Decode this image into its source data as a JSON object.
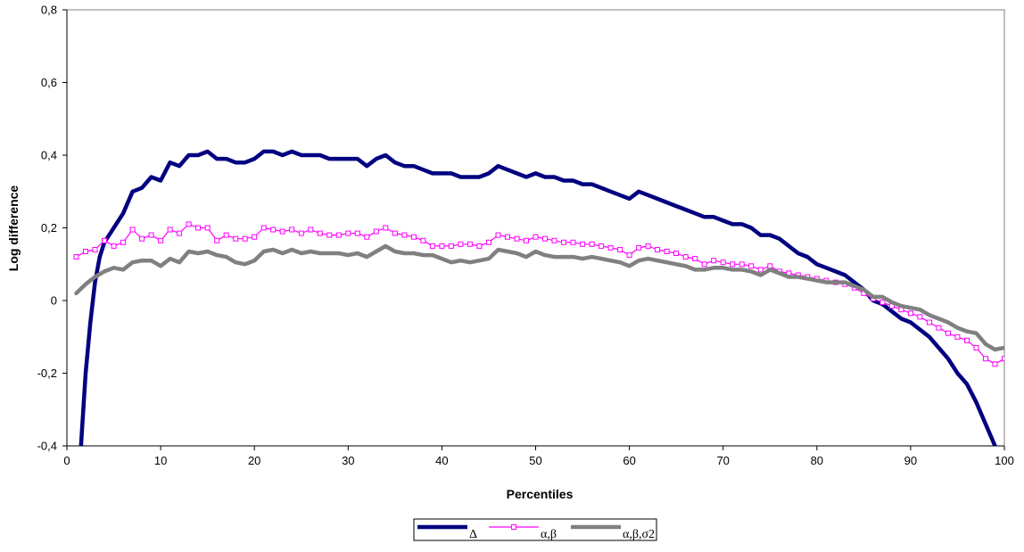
{
  "chart_data": {
    "type": "line",
    "title": "",
    "xlabel": "Percentiles",
    "ylabel": "Log difference",
    "xlim": [
      0,
      100
    ],
    "ylim": [
      -0.4,
      0.8
    ],
    "x_ticks": [
      0,
      10,
      20,
      30,
      40,
      50,
      60,
      70,
      80,
      90,
      100
    ],
    "x_tick_labels": [
      "0",
      "10",
      "20",
      "30",
      "40",
      "50",
      "60",
      "70",
      "80",
      "90",
      "100"
    ],
    "y_ticks": [
      -0.4,
      -0.2,
      0,
      0.2,
      0.4,
      0.6,
      0.8
    ],
    "y_tick_labels": [
      "-0,4",
      "-0,2",
      "0",
      "0,2",
      "0,4",
      "0,6",
      "0,8"
    ],
    "grid": false,
    "legend_position": "bottom-center",
    "series": [
      {
        "name": "Δ",
        "color": "#000080",
        "style": "thick-line",
        "points": [
          [
            1.5,
            -0.4
          ],
          [
            2,
            -0.2
          ],
          [
            2.5,
            -0.06
          ],
          [
            3,
            0.05
          ],
          [
            3.5,
            0.12
          ],
          [
            4,
            0.16
          ],
          [
            5,
            0.2
          ],
          [
            6,
            0.24
          ],
          [
            7,
            0.3
          ],
          [
            8,
            0.31
          ],
          [
            9,
            0.34
          ],
          [
            10,
            0.33
          ],
          [
            11,
            0.38
          ],
          [
            12,
            0.37
          ],
          [
            13,
            0.4
          ],
          [
            14,
            0.4
          ],
          [
            15,
            0.41
          ],
          [
            16,
            0.39
          ],
          [
            17,
            0.39
          ],
          [
            18,
            0.38
          ],
          [
            19,
            0.38
          ],
          [
            20,
            0.39
          ],
          [
            21,
            0.41
          ],
          [
            22,
            0.41
          ],
          [
            23,
            0.4
          ],
          [
            24,
            0.41
          ],
          [
            25,
            0.4
          ],
          [
            26,
            0.4
          ],
          [
            27,
            0.4
          ],
          [
            28,
            0.39
          ],
          [
            29,
            0.39
          ],
          [
            30,
            0.39
          ],
          [
            31,
            0.39
          ],
          [
            32,
            0.37
          ],
          [
            33,
            0.39
          ],
          [
            34,
            0.4
          ],
          [
            35,
            0.38
          ],
          [
            36,
            0.37
          ],
          [
            37,
            0.37
          ],
          [
            38,
            0.36
          ],
          [
            39,
            0.35
          ],
          [
            40,
            0.35
          ],
          [
            41,
            0.35
          ],
          [
            42,
            0.34
          ],
          [
            43,
            0.34
          ],
          [
            44,
            0.34
          ],
          [
            45,
            0.35
          ],
          [
            46,
            0.37
          ],
          [
            47,
            0.36
          ],
          [
            48,
            0.35
          ],
          [
            49,
            0.34
          ],
          [
            50,
            0.35
          ],
          [
            51,
            0.34
          ],
          [
            52,
            0.34
          ],
          [
            53,
            0.33
          ],
          [
            54,
            0.33
          ],
          [
            55,
            0.32
          ],
          [
            56,
            0.32
          ],
          [
            57,
            0.31
          ],
          [
            58,
            0.3
          ],
          [
            59,
            0.29
          ],
          [
            60,
            0.28
          ],
          [
            61,
            0.3
          ],
          [
            62,
            0.29
          ],
          [
            63,
            0.28
          ],
          [
            64,
            0.27
          ],
          [
            65,
            0.26
          ],
          [
            66,
            0.25
          ],
          [
            67,
            0.24
          ],
          [
            68,
            0.23
          ],
          [
            69,
            0.23
          ],
          [
            70,
            0.22
          ],
          [
            71,
            0.21
          ],
          [
            72,
            0.21
          ],
          [
            73,
            0.2
          ],
          [
            74,
            0.18
          ],
          [
            75,
            0.18
          ],
          [
            76,
            0.17
          ],
          [
            77,
            0.15
          ],
          [
            78,
            0.13
          ],
          [
            79,
            0.12
          ],
          [
            80,
            0.1
          ],
          [
            81,
            0.09
          ],
          [
            82,
            0.08
          ],
          [
            83,
            0.07
          ],
          [
            84,
            0.05
          ],
          [
            85,
            0.03
          ],
          [
            86,
            0
          ],
          [
            87,
            -0.01
          ],
          [
            88,
            -0.03
          ],
          [
            89,
            -0.05
          ],
          [
            90,
            -0.06
          ],
          [
            91,
            -0.08
          ],
          [
            92,
            -0.1
          ],
          [
            93,
            -0.13
          ],
          [
            94,
            -0.16
          ],
          [
            95,
            -0.2
          ],
          [
            96,
            -0.23
          ],
          [
            97,
            -0.28
          ],
          [
            98,
            -0.34
          ],
          [
            99,
            -0.4
          ]
        ]
      },
      {
        "name": "α,β",
        "color": "#ff00ff",
        "style": "thin-line-square-markers",
        "points": [
          [
            1,
            0.12
          ],
          [
            2,
            0.135
          ],
          [
            3,
            0.14
          ],
          [
            4,
            0.165
          ],
          [
            5,
            0.15
          ],
          [
            6,
            0.16
          ],
          [
            7,
            0.195
          ],
          [
            8,
            0.17
          ],
          [
            9,
            0.18
          ],
          [
            10,
            0.165
          ],
          [
            11,
            0.195
          ],
          [
            12,
            0.185
          ],
          [
            13,
            0.21
          ],
          [
            14,
            0.2
          ],
          [
            15,
            0.2
          ],
          [
            16,
            0.165
          ],
          [
            17,
            0.18
          ],
          [
            18,
            0.17
          ],
          [
            19,
            0.17
          ],
          [
            20,
            0.175
          ],
          [
            21,
            0.2
          ],
          [
            22,
            0.195
          ],
          [
            23,
            0.19
          ],
          [
            24,
            0.195
          ],
          [
            25,
            0.185
          ],
          [
            26,
            0.195
          ],
          [
            27,
            0.185
          ],
          [
            28,
            0.18
          ],
          [
            29,
            0.18
          ],
          [
            30,
            0.185
          ],
          [
            31,
            0.185
          ],
          [
            32,
            0.175
          ],
          [
            33,
            0.19
          ],
          [
            34,
            0.2
          ],
          [
            35,
            0.185
          ],
          [
            36,
            0.18
          ],
          [
            37,
            0.175
          ],
          [
            38,
            0.165
          ],
          [
            39,
            0.15
          ],
          [
            40,
            0.15
          ],
          [
            41,
            0.15
          ],
          [
            42,
            0.155
          ],
          [
            43,
            0.155
          ],
          [
            44,
            0.15
          ],
          [
            45,
            0.16
          ],
          [
            46,
            0.18
          ],
          [
            47,
            0.175
          ],
          [
            48,
            0.17
          ],
          [
            49,
            0.165
          ],
          [
            50,
            0.175
          ],
          [
            51,
            0.17
          ],
          [
            52,
            0.165
          ],
          [
            53,
            0.16
          ],
          [
            54,
            0.16
          ],
          [
            55,
            0.155
          ],
          [
            56,
            0.155
          ],
          [
            57,
            0.15
          ],
          [
            58,
            0.145
          ],
          [
            59,
            0.14
          ],
          [
            60,
            0.125
          ],
          [
            61,
            0.145
          ],
          [
            62,
            0.15
          ],
          [
            63,
            0.14
          ],
          [
            64,
            0.135
          ],
          [
            65,
            0.13
          ],
          [
            66,
            0.12
          ],
          [
            67,
            0.115
          ],
          [
            68,
            0.1
          ],
          [
            69,
            0.11
          ],
          [
            70,
            0.105
          ],
          [
            71,
            0.1
          ],
          [
            72,
            0.1
          ],
          [
            73,
            0.095
          ],
          [
            74,
            0.085
          ],
          [
            75,
            0.095
          ],
          [
            76,
            0.08
          ],
          [
            77,
            0.075
          ],
          [
            78,
            0.07
          ],
          [
            79,
            0.065
          ],
          [
            80,
            0.06
          ],
          [
            81,
            0.055
          ],
          [
            82,
            0.05
          ],
          [
            83,
            0.045
          ],
          [
            84,
            0.035
          ],
          [
            85,
            0.02
          ],
          [
            86,
            0.005
          ],
          [
            87,
            -0.005
          ],
          [
            88,
            -0.015
          ],
          [
            89,
            -0.025
          ],
          [
            90,
            -0.035
          ],
          [
            91,
            -0.045
          ],
          [
            92,
            -0.06
          ],
          [
            93,
            -0.075
          ],
          [
            94,
            -0.09
          ],
          [
            95,
            -0.1
          ],
          [
            96,
            -0.11
          ],
          [
            97,
            -0.13
          ],
          [
            98,
            -0.16
          ],
          [
            99,
            -0.175
          ],
          [
            100,
            -0.16
          ]
        ]
      },
      {
        "name": "α,β,σ2",
        "color": "#808080",
        "style": "thick-line",
        "points": [
          [
            1,
            0.02
          ],
          [
            2,
            0.045
          ],
          [
            3,
            0.065
          ],
          [
            4,
            0.08
          ],
          [
            5,
            0.09
          ],
          [
            6,
            0.085
          ],
          [
            7,
            0.105
          ],
          [
            8,
            0.11
          ],
          [
            9,
            0.11
          ],
          [
            10,
            0.095
          ],
          [
            11,
            0.115
          ],
          [
            12,
            0.105
          ],
          [
            13,
            0.135
          ],
          [
            14,
            0.13
          ],
          [
            15,
            0.135
          ],
          [
            16,
            0.125
          ],
          [
            17,
            0.12
          ],
          [
            18,
            0.105
          ],
          [
            19,
            0.1
          ],
          [
            20,
            0.11
          ],
          [
            21,
            0.135
          ],
          [
            22,
            0.14
          ],
          [
            23,
            0.13
          ],
          [
            24,
            0.14
          ],
          [
            25,
            0.13
          ],
          [
            26,
            0.135
          ],
          [
            27,
            0.13
          ],
          [
            28,
            0.13
          ],
          [
            29,
            0.13
          ],
          [
            30,
            0.125
          ],
          [
            31,
            0.13
          ],
          [
            32,
            0.12
          ],
          [
            33,
            0.135
          ],
          [
            34,
            0.15
          ],
          [
            35,
            0.135
          ],
          [
            36,
            0.13
          ],
          [
            37,
            0.13
          ],
          [
            38,
            0.125
          ],
          [
            39,
            0.125
          ],
          [
            40,
            0.115
          ],
          [
            41,
            0.105
          ],
          [
            42,
            0.11
          ],
          [
            43,
            0.105
          ],
          [
            44,
            0.11
          ],
          [
            45,
            0.115
          ],
          [
            46,
            0.14
          ],
          [
            47,
            0.135
          ],
          [
            48,
            0.13
          ],
          [
            49,
            0.12
          ],
          [
            50,
            0.135
          ],
          [
            51,
            0.125
          ],
          [
            52,
            0.12
          ],
          [
            53,
            0.12
          ],
          [
            54,
            0.12
          ],
          [
            55,
            0.115
          ],
          [
            56,
            0.12
          ],
          [
            57,
            0.115
          ],
          [
            58,
            0.11
          ],
          [
            59,
            0.105
          ],
          [
            60,
            0.095
          ],
          [
            61,
            0.11
          ],
          [
            62,
            0.115
          ],
          [
            63,
            0.11
          ],
          [
            64,
            0.105
          ],
          [
            65,
            0.1
          ],
          [
            66,
            0.095
          ],
          [
            67,
            0.085
          ],
          [
            68,
            0.085
          ],
          [
            69,
            0.09
          ],
          [
            70,
            0.09
          ],
          [
            71,
            0.085
          ],
          [
            72,
            0.085
          ],
          [
            73,
            0.08
          ],
          [
            74,
            0.07
          ],
          [
            75,
            0.085
          ],
          [
            76,
            0.075
          ],
          [
            77,
            0.065
          ],
          [
            78,
            0.065
          ],
          [
            79,
            0.06
          ],
          [
            80,
            0.055
          ],
          [
            81,
            0.05
          ],
          [
            82,
            0.05
          ],
          [
            83,
            0.05
          ],
          [
            84,
            0.04
          ],
          [
            85,
            0.03
          ],
          [
            86,
            0.01
          ],
          [
            87,
            0.01
          ],
          [
            88,
            -0.005
          ],
          [
            89,
            -0.015
          ],
          [
            90,
            -0.02
          ],
          [
            91,
            -0.025
          ],
          [
            92,
            -0.04
          ],
          [
            93,
            -0.05
          ],
          [
            94,
            -0.06
          ],
          [
            95,
            -0.075
          ],
          [
            96,
            -0.085
          ],
          [
            97,
            -0.09
          ],
          [
            98,
            -0.12
          ],
          [
            99,
            -0.135
          ],
          [
            100,
            -0.13
          ]
        ]
      }
    ]
  }
}
